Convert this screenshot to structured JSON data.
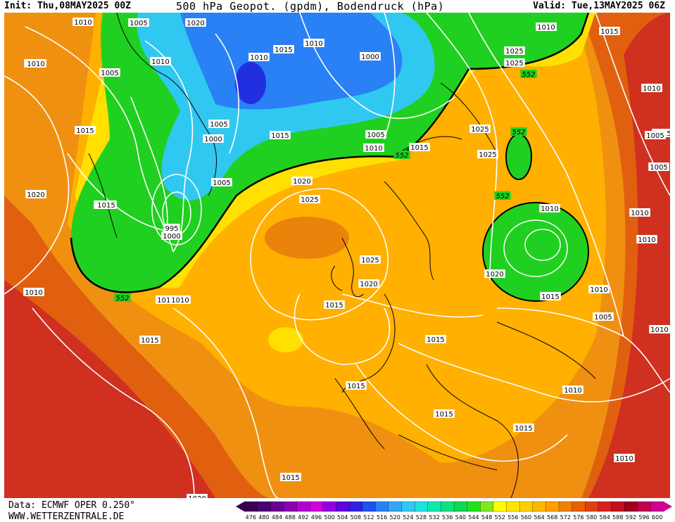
{
  "header": {
    "init": "Init: Thu,08MAY2025 00Z",
    "title": "500 hPa Geopot. (gpdm), Bodendruck (hPa)",
    "valid": "Valid: Tue,13MAY2025 06Z"
  },
  "footer": {
    "data_source": "Data: ECMWF OPER 0.250°",
    "website": "WWW.WETTERZENTRALE.DE"
  },
  "legend": {
    "values": [
      "476",
      "480",
      "484",
      "488",
      "492",
      "496",
      "500",
      "504",
      "508",
      "512",
      "516",
      "520",
      "524",
      "528",
      "532",
      "536",
      "540",
      "544",
      "548",
      "552",
      "556",
      "560",
      "564",
      "568",
      "572",
      "576",
      "580",
      "584",
      "588",
      "592",
      "596",
      "600"
    ],
    "colors": [
      "#3a0050",
      "#4a0070",
      "#6a0090",
      "#8a00b0",
      "#b000d0",
      "#d000e0",
      "#9000e0",
      "#6000e0",
      "#3020e0",
      "#2050f0",
      "#2a80f5",
      "#30a8f5",
      "#30c8f0",
      "#20e0e0",
      "#10e8b0",
      "#10e080",
      "#10d850",
      "#20e020",
      "#80e820",
      "#ffff00",
      "#ffe600",
      "#ffd000",
      "#ffb800",
      "#ffa000",
      "#f08000",
      "#e86000",
      "#e04010",
      "#d82020",
      "#c01020",
      "#a00020",
      "#c00050",
      "#d00090"
    ]
  },
  "map": {
    "colors": {
      "deep_blue": "#2030e0",
      "blue": "#2a80f5",
      "cyan": "#30c8f0",
      "green": "#20e020",
      "yellow": "#ffff00",
      "gold": "#ffc000",
      "orange": "#f09010",
      "dark_orange": "#e06010",
      "red": "#d03020",
      "contour": "#ffffff",
      "coast": "#000000"
    },
    "labels_552": [
      "552",
      "552",
      "552",
      "552",
      "552"
    ],
    "pressure_labels": [
      "1010",
      "1005",
      "1010",
      "1005",
      "1010",
      "1015",
      "1010",
      "1000",
      "1020",
      "1015",
      "1025",
      "1025",
      "1015",
      "1010",
      "1015",
      "1005",
      "1000",
      "1005",
      "1015",
      "1005",
      "1010",
      "1015",
      "1020",
      "1025",
      "1025",
      "1015",
      "1020",
      "1015",
      "1010",
      "1010",
      "1025",
      "1020",
      "1015",
      "1010",
      "1000",
      "995",
      "1025",
      "1010",
      "1015",
      "1015",
      "1015",
      "1015",
      "1015",
      "1015",
      "1015",
      "1010",
      "1005",
      "1010",
      "1010",
      "1010",
      "1010",
      "1010",
      "1020",
      "1015",
      "1010",
      "1005",
      "1010",
      "1020",
      "1005"
    ]
  }
}
